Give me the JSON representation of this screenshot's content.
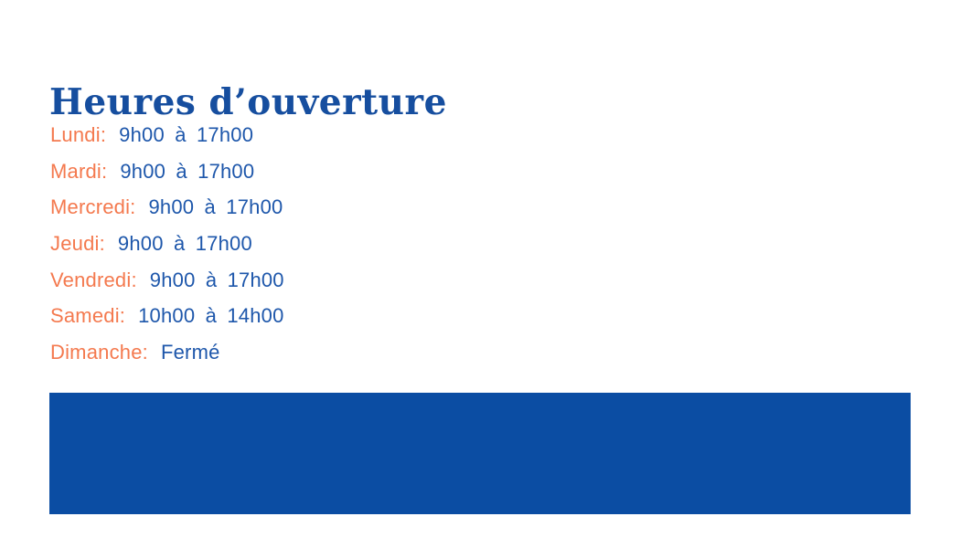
{
  "slide": {
    "title": "Heures d’ouverture"
  },
  "schedule": {
    "rows": [
      {
        "day": "Lundi:",
        "time": "9h00 à 17h00"
      },
      {
        "day": "Mardi:",
        "time": "9h00 à 17h00"
      },
      {
        "day": "Mercredi:",
        "time": "9h00 à 17h00"
      },
      {
        "day": "Jeudi:",
        "time": "9h00 à 17h00"
      },
      {
        "day": "Vendredi:",
        "time": "9h00 à 17h00"
      },
      {
        "day": "Samedi:",
        "time": "10h00 à 14h00"
      },
      {
        "day": "Dimanche:",
        "time": "Fermé"
      }
    ]
  },
  "colors": {
    "background": "#FFFFFF",
    "title_blue": "#164E9F",
    "hours_blue": "#1E57AB",
    "day_orange": "#F4794E",
    "banner_blue": "#0B4DA3"
  }
}
